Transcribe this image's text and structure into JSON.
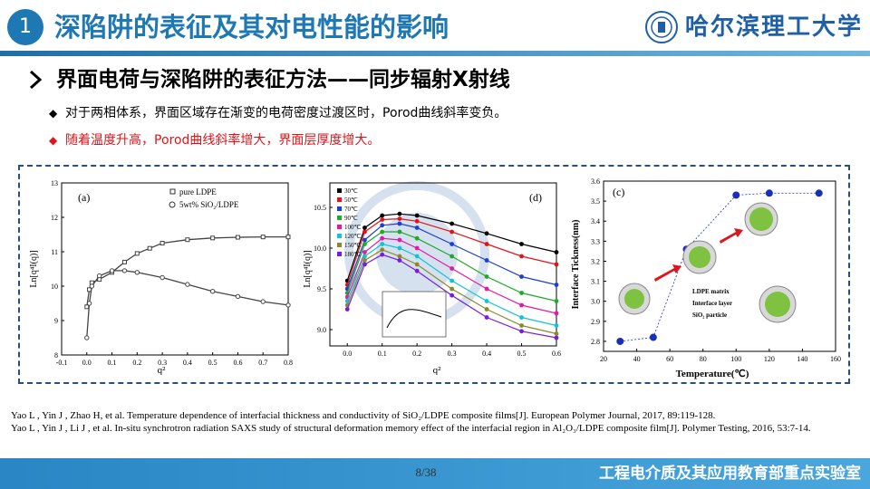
{
  "header": {
    "slide_number": "1",
    "title": "深陷阱的表征及其对电性能的影响",
    "university": "哈尔滨理工大学"
  },
  "subheading": "界面电荷与深陷阱的表征方法——同步辐射X射线",
  "bullets": [
    {
      "text": "对于两相体系，界面区域存在渐变的电荷密度过渡区时，Porod曲线斜率变负。",
      "color": "#000000"
    },
    {
      "text": "随着温度升高，Porod曲线斜率增大，界面层厚度增大。",
      "color": "#e0141a"
    }
  ],
  "figure": {
    "panel_a": {
      "label": "(a)",
      "ylabel": "Ln[q⁴I(q)]",
      "xlabel": "q²",
      "yticks": [
        "8",
        "9",
        "10",
        "11",
        "12",
        "13"
      ],
      "xticks": [
        "-0.1",
        "0.0",
        "0.1",
        "0.2",
        "0.3",
        "0.4",
        "0.5",
        "0.6",
        "0.7",
        "0.8"
      ],
      "legend": [
        "pure LDPE",
        "5wt% SiO₂/LDPE"
      ]
    },
    "panel_b": {
      "label": "(d)",
      "ylabel": "Ln[q⁴I(q)]",
      "xlabel": "q²",
      "yticks": [
        "9.0",
        "9.5",
        "10.0",
        "10.5"
      ],
      "xticks": [
        "0.0",
        "0.1",
        "0.2",
        "0.3",
        "0.4",
        "0.5",
        "0.6"
      ],
      "legend": [
        "30℃",
        "50℃",
        "70℃",
        "90℃",
        "100℃",
        "120℃",
        "150℃",
        "180℃"
      ]
    },
    "panel_c": {
      "label": "(c)",
      "ylabel": "Interface Tickness(nm)",
      "xlabel": "Temperature(℃)",
      "yticks": [
        "2.8",
        "2.9",
        "3.0",
        "3.1",
        "3.2",
        "3.3",
        "3.4",
        "3.5",
        "3.6"
      ],
      "xticks": [
        "20",
        "40",
        "60",
        "80",
        "100",
        "120",
        "140",
        "160"
      ],
      "legend": [
        "LDPE matrix",
        "Interface layer",
        "SiO₂ particle"
      ]
    }
  },
  "chart_data": [
    {
      "type": "line",
      "title": "(a)",
      "xlabel": "q²",
      "ylabel": "Ln[q⁴I(q)]",
      "xlim": [
        -0.1,
        0.8
      ],
      "ylim": [
        8,
        13
      ],
      "series": [
        {
          "name": "pure LDPE",
          "x": [
            0.0,
            0.01,
            0.02,
            0.05,
            0.1,
            0.15,
            0.2,
            0.25,
            0.3,
            0.4,
            0.5,
            0.6,
            0.7,
            0.8
          ],
          "y": [
            9.4,
            9.9,
            10.1,
            10.2,
            10.4,
            10.7,
            10.95,
            11.1,
            11.25,
            11.35,
            11.4,
            11.42,
            11.43,
            11.43
          ]
        },
        {
          "name": "5wt% SiO₂/LDPE",
          "x": [
            0.0,
            0.01,
            0.02,
            0.05,
            0.1,
            0.15,
            0.2,
            0.3,
            0.4,
            0.5,
            0.6,
            0.7,
            0.8
          ],
          "y": [
            8.5,
            9.5,
            10.0,
            10.3,
            10.45,
            10.45,
            10.4,
            10.25,
            10.05,
            9.85,
            9.7,
            9.55,
            9.45
          ]
        }
      ]
    },
    {
      "type": "line",
      "title": "(d)",
      "xlabel": "q²",
      "ylabel": "Ln[q⁴I(q)]",
      "xlim": [
        -0.05,
        0.6
      ],
      "ylim": [
        8.8,
        10.8
      ],
      "series": [
        {
          "name": "30℃",
          "x": [
            0.0,
            0.05,
            0.1,
            0.15,
            0.2,
            0.3,
            0.4,
            0.5,
            0.6
          ],
          "y": [
            9.6,
            10.25,
            10.4,
            10.42,
            10.4,
            10.3,
            10.18,
            10.05,
            9.95
          ]
        },
        {
          "name": "50℃",
          "x": [
            0.0,
            0.05,
            0.1,
            0.15,
            0.2,
            0.3,
            0.4,
            0.5,
            0.6
          ],
          "y": [
            9.55,
            10.2,
            10.35,
            10.36,
            10.33,
            10.2,
            10.05,
            9.9,
            9.8
          ]
        },
        {
          "name": "70℃",
          "x": [
            0.0,
            0.05,
            0.1,
            0.15,
            0.2,
            0.3,
            0.4,
            0.5,
            0.6
          ],
          "y": [
            9.5,
            10.1,
            10.28,
            10.3,
            10.25,
            10.05,
            9.85,
            9.65,
            9.55
          ]
        },
        {
          "name": "90℃",
          "x": [
            0.0,
            0.05,
            0.1,
            0.15,
            0.2,
            0.3,
            0.4,
            0.5,
            0.6
          ],
          "y": [
            9.45,
            10.05,
            10.2,
            10.2,
            10.12,
            9.9,
            9.65,
            9.45,
            9.35
          ]
        },
        {
          "name": "100℃",
          "x": [
            0.0,
            0.05,
            0.1,
            0.15,
            0.2,
            0.3,
            0.4,
            0.5,
            0.6
          ],
          "y": [
            9.4,
            9.95,
            10.12,
            10.1,
            10.0,
            9.75,
            9.5,
            9.3,
            9.2
          ]
        },
        {
          "name": "120℃",
          "x": [
            0.0,
            0.05,
            0.1,
            0.15,
            0.2,
            0.3,
            0.4,
            0.5,
            0.6
          ],
          "y": [
            9.35,
            9.9,
            10.05,
            10.0,
            9.9,
            9.6,
            9.35,
            9.15,
            9.05
          ]
        },
        {
          "name": "150℃",
          "x": [
            0.0,
            0.05,
            0.1,
            0.15,
            0.2,
            0.3,
            0.4,
            0.5,
            0.6
          ],
          "y": [
            9.3,
            9.85,
            9.98,
            9.9,
            9.8,
            9.5,
            9.25,
            9.05,
            8.95
          ]
        },
        {
          "name": "180℃",
          "x": [
            0.0,
            0.05,
            0.1,
            0.15,
            0.2,
            0.3,
            0.4,
            0.5,
            0.6
          ],
          "y": [
            9.25,
            9.8,
            9.92,
            9.85,
            9.72,
            9.42,
            9.15,
            8.98,
            8.9
          ]
        }
      ]
    },
    {
      "type": "scatter",
      "title": "(c)",
      "xlabel": "Temperature(℃)",
      "ylabel": "Interface Tickness(nm)",
      "xlim": [
        20,
        160
      ],
      "ylim": [
        2.75,
        3.6
      ],
      "series": [
        {
          "name": "Interface thickness",
          "x": [
            30,
            50,
            70,
            100,
            120,
            150
          ],
          "y": [
            2.8,
            2.82,
            3.26,
            3.53,
            3.54,
            3.54
          ]
        }
      ]
    }
  ],
  "references": [
    "Yao L , Yin J , Zhao H, et al. Temperature dependence of interfacial thickness and conductivity of SiO₂/LDPE composite films[J]. European Polymer Journal, 2017, 89:119-128.",
    "Yao L , Yin J , Li J , et al. In-situ synchrotron radiation SAXS study of structural deformation memory effect of the interfacial region in Al₂O₃/LDPE composite film[J]. Polymer Testing, 2016, 53:7-14."
  ],
  "footer": {
    "page": "8/38",
    "lab": "工程电介质及其应用教育部重点实验室"
  },
  "colors": {
    "accent": "#1e78b4",
    "highlight": "#e0141a",
    "frame": "#2b4f7d"
  }
}
